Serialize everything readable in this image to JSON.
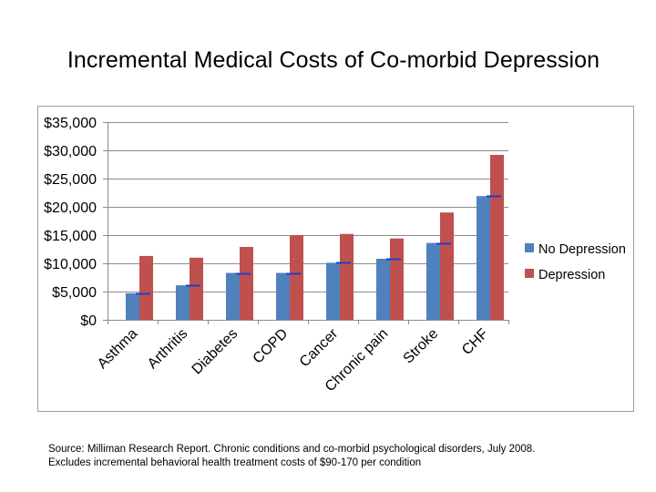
{
  "title": "Incremental Medical Costs of Co-morbid Depression",
  "chart_data": {
    "type": "bar",
    "title": "",
    "xlabel": "",
    "ylabel": "",
    "categories": [
      "Asthma",
      "Arthritis",
      "Diabetes",
      "COPD",
      "Cancer",
      "Chronic pain",
      "Stroke",
      "CHF"
    ],
    "series": [
      {
        "name": "No Depression",
        "color": "#4F81BD",
        "values": [
          4700,
          6100,
          8300,
          8300,
          10100,
          10800,
          13600,
          21900
        ]
      },
      {
        "name": "Depression",
        "color": "#C0504D",
        "values": [
          11300,
          11000,
          12900,
          15000,
          15200,
          14400,
          19000,
          29200
        ]
      }
    ],
    "ylim": [
      0,
      35000
    ],
    "yticks": [
      0,
      5000,
      10000,
      15000,
      20000,
      25000,
      30000,
      35000
    ],
    "ytick_labels": [
      "$0",
      "$5,000",
      "$10,000",
      "$15,000",
      "$20,000",
      "$25,000",
      "$30,000",
      "$35,000"
    ],
    "marker_color": "#1F3FBF",
    "grid": true,
    "legend_position": "right"
  },
  "notes": {
    "source": "Source: Milliman Research Report. Chronic conditions and co-morbid psychological disorders, July 2008.",
    "excludes": "Excludes incremental behavioral health treatment costs of $90-170 per condition"
  }
}
